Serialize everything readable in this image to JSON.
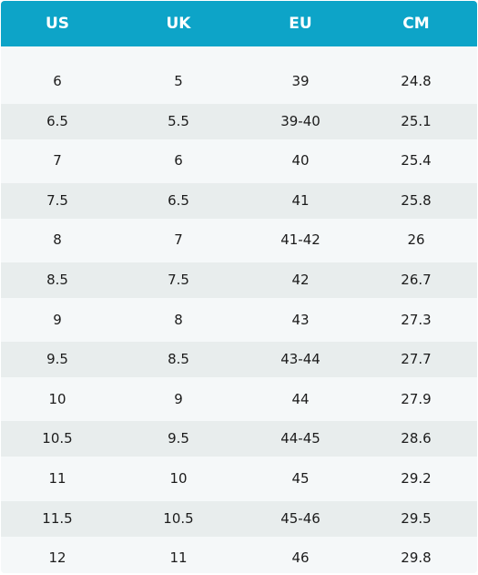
{
  "chart_data": {
    "type": "table",
    "columns": [
      "US",
      "UK",
      "EU",
      "CM"
    ],
    "rows": [
      [
        "6",
        "5",
        "39",
        "24.8"
      ],
      [
        "6.5",
        "5.5",
        "39-40",
        "25.1"
      ],
      [
        "7",
        "6",
        "40",
        "25.4"
      ],
      [
        "7.5",
        "6.5",
        "41",
        "25.8"
      ],
      [
        "8",
        "7",
        "41-42",
        "26"
      ],
      [
        "8.5",
        "7.5",
        "42",
        "26.7"
      ],
      [
        "9",
        "8",
        "43",
        "27.3"
      ],
      [
        "9.5",
        "8.5",
        "43-44",
        "27.7"
      ],
      [
        "10",
        "9",
        "44",
        "27.9"
      ],
      [
        "10.5",
        "9.5",
        "44-45",
        "28.6"
      ],
      [
        "11",
        "10",
        "45",
        "29.2"
      ],
      [
        "11.5",
        "10.5",
        "45-46",
        "29.5"
      ],
      [
        "12",
        "11",
        "46",
        "29.8"
      ]
    ]
  }
}
